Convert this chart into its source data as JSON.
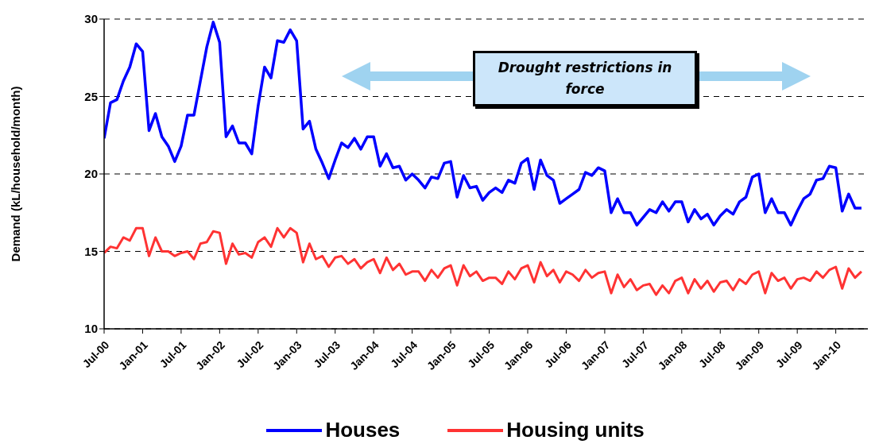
{
  "chart_data": {
    "type": "line",
    "ylabel": "Demand (kL/household/month)",
    "x": [
      "2000-07",
      "2000-08",
      "2000-09",
      "2000-10",
      "2000-11",
      "2000-12",
      "2001-01",
      "2001-02",
      "2001-03",
      "2001-04",
      "2001-05",
      "2001-06",
      "2001-07",
      "2001-08",
      "2001-09",
      "2001-10",
      "2001-11",
      "2001-12",
      "2002-01",
      "2002-02",
      "2002-03",
      "2002-04",
      "2002-05",
      "2002-06",
      "2002-07",
      "2002-08",
      "2002-09",
      "2002-10",
      "2002-11",
      "2002-12",
      "2003-01",
      "2003-02",
      "2003-03",
      "2003-04",
      "2003-05",
      "2003-06",
      "2003-07",
      "2003-08",
      "2003-09",
      "2003-10",
      "2003-11",
      "2003-12",
      "2004-01",
      "2004-02",
      "2004-03",
      "2004-04",
      "2004-05",
      "2004-06",
      "2004-07",
      "2004-08",
      "2004-09",
      "2004-10",
      "2004-11",
      "2004-12",
      "2005-01",
      "2005-02",
      "2005-03",
      "2005-04",
      "2005-05",
      "2005-06",
      "2005-07",
      "2005-08",
      "2005-09",
      "2005-10",
      "2005-11",
      "2005-12",
      "2006-01",
      "2006-02",
      "2006-03",
      "2006-04",
      "2006-05",
      "2006-06",
      "2006-07",
      "2006-08",
      "2006-09",
      "2006-10",
      "2006-11",
      "2006-12",
      "2007-01",
      "2007-02",
      "2007-03",
      "2007-04",
      "2007-05",
      "2007-06",
      "2007-07",
      "2007-08",
      "2007-09",
      "2007-10",
      "2007-11",
      "2007-12",
      "2008-01",
      "2008-02",
      "2008-03",
      "2008-04",
      "2008-05",
      "2008-06",
      "2008-07",
      "2008-08",
      "2008-09",
      "2008-10",
      "2008-11",
      "2008-12",
      "2009-01",
      "2009-02",
      "2009-03",
      "2009-04",
      "2009-05",
      "2009-06",
      "2009-07",
      "2009-08",
      "2009-09",
      "2009-10",
      "2009-11",
      "2009-12",
      "2010-01",
      "2010-02",
      "2010-03",
      "2010-04",
      "2010-05"
    ],
    "series": [
      {
        "name": "Houses",
        "color": "#0000ff",
        "values": [
          22.3,
          24.6,
          24.8,
          26.0,
          26.9,
          28.4,
          27.9,
          22.8,
          23.9,
          22.4,
          21.8,
          20.8,
          21.8,
          23.8,
          23.8,
          26.0,
          28.2,
          29.8,
          28.5,
          22.4,
          23.1,
          22.0,
          22.0,
          21.3,
          24.4,
          26.9,
          26.2,
          28.6,
          28.5,
          29.3,
          28.6,
          22.9,
          23.4,
          21.6,
          20.7,
          19.7,
          20.9,
          22.0,
          21.7,
          22.3,
          21.6,
          22.4,
          22.4,
          20.5,
          21.3,
          20.4,
          20.5,
          19.6,
          20.0,
          19.6,
          19.1,
          19.8,
          19.7,
          20.7,
          20.8,
          18.5,
          19.9,
          19.1,
          19.2,
          18.3,
          18.8,
          19.1,
          18.8,
          19.6,
          19.4,
          20.7,
          21.0,
          19.0,
          20.9,
          19.9,
          19.6,
          18.1,
          18.4,
          18.7,
          19.0,
          20.1,
          19.9,
          20.4,
          20.2,
          17.5,
          18.4,
          17.5,
          17.5,
          16.7,
          17.2,
          17.7,
          17.5,
          18.2,
          17.6,
          18.2,
          18.2,
          16.9,
          17.7,
          17.1,
          17.4,
          16.7,
          17.3,
          17.7,
          17.4,
          18.2,
          18.5,
          19.8,
          20.0,
          17.5,
          18.4,
          17.5,
          17.5,
          16.7,
          17.6,
          18.4,
          18.7,
          19.6,
          19.7,
          20.5,
          20.4,
          17.6,
          18.7,
          17.8,
          17.8
        ]
      },
      {
        "name": "Housing units",
        "color": "#ff3333",
        "values": [
          14.9,
          15.3,
          15.2,
          15.9,
          15.7,
          16.5,
          16.5,
          14.7,
          15.9,
          15.0,
          15.0,
          14.7,
          14.9,
          15.0,
          14.5,
          15.5,
          15.6,
          16.3,
          16.2,
          14.2,
          15.5,
          14.8,
          14.9,
          14.6,
          15.6,
          15.9,
          15.3,
          16.5,
          15.9,
          16.5,
          16.2,
          14.3,
          15.5,
          14.5,
          14.7,
          14.0,
          14.6,
          14.7,
          14.2,
          14.5,
          13.9,
          14.3,
          14.5,
          13.6,
          14.6,
          13.8,
          14.2,
          13.5,
          13.7,
          13.7,
          13.1,
          13.8,
          13.3,
          13.9,
          14.1,
          12.8,
          14.1,
          13.4,
          13.7,
          13.1,
          13.3,
          13.3,
          12.9,
          13.7,
          13.2,
          13.9,
          14.1,
          13.0,
          14.3,
          13.4,
          13.8,
          13.0,
          13.7,
          13.5,
          13.1,
          13.8,
          13.3,
          13.6,
          13.7,
          12.3,
          13.5,
          12.7,
          13.2,
          12.5,
          12.8,
          12.9,
          12.2,
          12.8,
          12.3,
          13.1,
          13.3,
          12.3,
          13.2,
          12.6,
          13.1,
          12.4,
          13.0,
          13.1,
          12.5,
          13.2,
          12.9,
          13.5,
          13.7,
          12.3,
          13.6,
          13.1,
          13.3,
          12.6,
          13.2,
          13.3,
          13.1,
          13.7,
          13.3,
          13.8,
          14.0,
          12.6,
          13.9,
          13.3,
          13.7
        ]
      }
    ],
    "xlim": [
      "2000-07",
      "2010-06"
    ],
    "xticks": [
      {
        "value": "2000-07",
        "label": "Jul-00"
      },
      {
        "value": "2001-01",
        "label": "Jan-01"
      },
      {
        "value": "2001-07",
        "label": "Jul-01"
      },
      {
        "value": "2002-01",
        "label": "Jan-02"
      },
      {
        "value": "2002-07",
        "label": "Jul-02"
      },
      {
        "value": "2003-01",
        "label": "Jan-03"
      },
      {
        "value": "2003-07",
        "label": "Jul-03"
      },
      {
        "value": "2004-01",
        "label": "Jan-04"
      },
      {
        "value": "2004-07",
        "label": "Jul-04"
      },
      {
        "value": "2005-01",
        "label": "Jan-05"
      },
      {
        "value": "2005-07",
        "label": "Jul-05"
      },
      {
        "value": "2006-01",
        "label": "Jan-06"
      },
      {
        "value": "2006-07",
        "label": "Jul-06"
      },
      {
        "value": "2007-01",
        "label": "Jan-07"
      },
      {
        "value": "2007-07",
        "label": "Jul-07"
      },
      {
        "value": "2008-01",
        "label": "Jan-08"
      },
      {
        "value": "2008-07",
        "label": "Jul-08"
      },
      {
        "value": "2009-01",
        "label": "Jan-09"
      },
      {
        "value": "2009-07",
        "label": "Jul-09"
      },
      {
        "value": "2010-01",
        "label": "Jan-10"
      }
    ],
    "ylim": [
      10,
      30
    ],
    "yticks": [
      10,
      15,
      20,
      25,
      30
    ],
    "grid": "y",
    "legend": "bottom",
    "marker": "none",
    "line_style": "solid",
    "annotations": [
      "Drought restrictions in force"
    ]
  }
}
